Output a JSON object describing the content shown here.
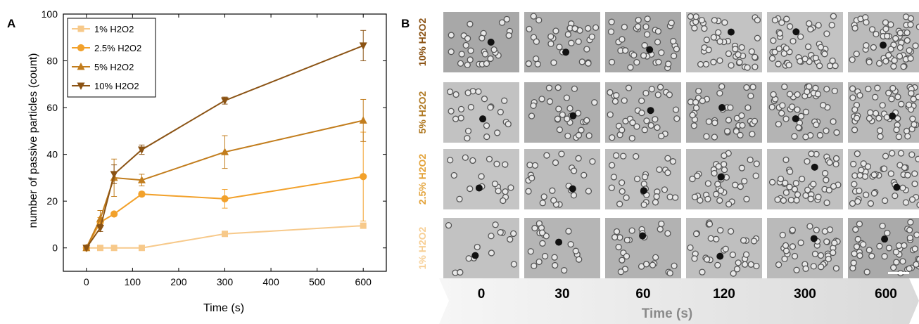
{
  "panels": {
    "a": "A",
    "b": "B"
  },
  "chart_data": {
    "type": "line",
    "xlabel": "Time (s)",
    "ylabel": "number of passive particles (count)",
    "xlim": [
      -50,
      650
    ],
    "ylim": [
      -10,
      100
    ],
    "xticks": [
      0,
      100,
      200,
      300,
      400,
      500,
      600
    ],
    "yticks": [
      0,
      20,
      40,
      60,
      80,
      100
    ],
    "legend_position": "top-left",
    "series": [
      {
        "name": "1% H2O2",
        "color": "#f7c98a",
        "marker": "square",
        "x": [
          0,
          30,
          60,
          120,
          300,
          600
        ],
        "y": [
          0,
          0,
          0,
          0,
          6,
          9.5
        ],
        "err": [
          0,
          0,
          0,
          0,
          0,
          0
        ]
      },
      {
        "name": "2.5% H2O2",
        "color": "#f2a12b",
        "marker": "circle",
        "x": [
          0,
          30,
          60,
          120,
          300,
          600
        ],
        "y": [
          0,
          11,
          14.5,
          23,
          21,
          30.5
        ],
        "err": [
          0,
          2,
          0,
          1,
          4,
          19
        ]
      },
      {
        "name": "5% H2O2",
        "color": "#c27d1d",
        "marker": "triangle-up",
        "x": [
          0,
          30,
          60,
          120,
          300,
          600
        ],
        "y": [
          0,
          12.5,
          30,
          29,
          41,
          54.5
        ],
        "err": [
          0,
          3.5,
          8,
          2.5,
          7,
          9
        ]
      },
      {
        "name": "10% H2O2",
        "color": "#8b5314",
        "marker": "triangle-down",
        "x": [
          0,
          30,
          60,
          120,
          300,
          600
        ],
        "y": [
          0,
          8.5,
          31.5,
          42,
          63,
          86.5
        ],
        "err": [
          0,
          1.5,
          4,
          2,
          1.5,
          6.5
        ]
      }
    ]
  },
  "panel_b": {
    "rows": [
      {
        "label": "10% H2O2",
        "color": "#8b5314"
      },
      {
        "label": "5% H2O2",
        "color": "#b07a24"
      },
      {
        "label": "2.5% H2O2",
        "color": "#e3a33a"
      },
      {
        "label": "1% H2O2",
        "color": "#f7cf95"
      }
    ],
    "time_labels": [
      "0",
      "30",
      "60",
      "120",
      "300",
      "600"
    ],
    "time_title": "Time (s)"
  }
}
